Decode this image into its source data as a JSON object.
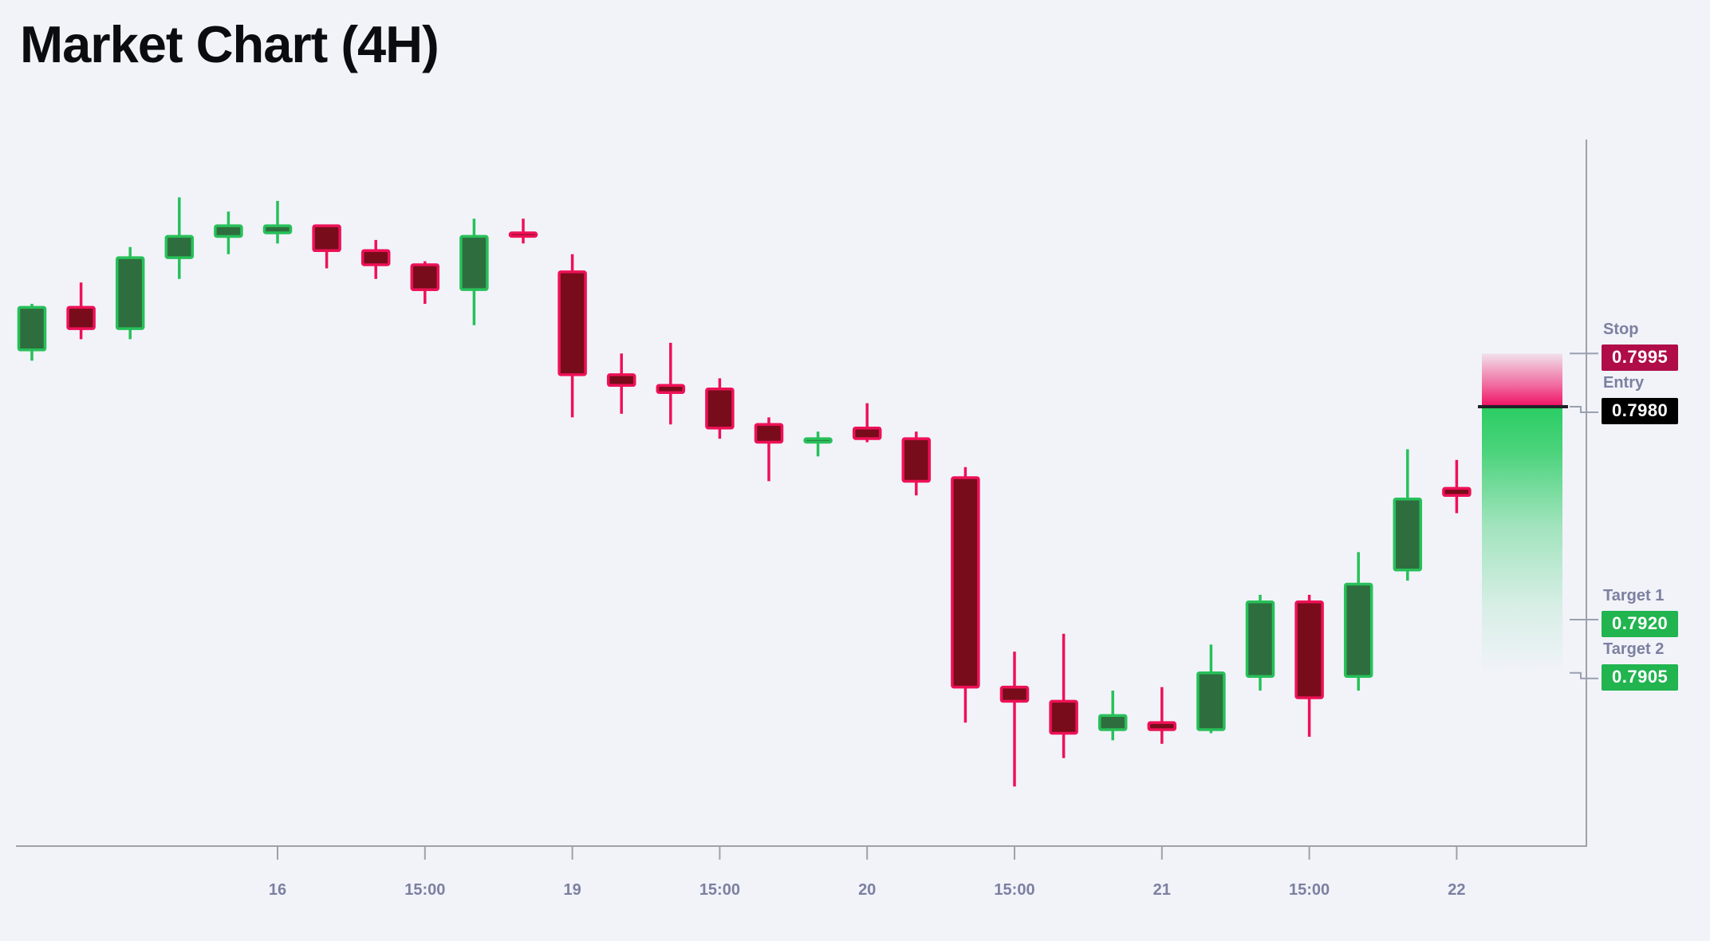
{
  "title": "Market Chart (4H)",
  "chart_data": {
    "type": "candlestick",
    "title": "Market Chart (4H)",
    "timeframe": "4H",
    "x_ticks": [
      {
        "candle_index": 5,
        "label": "16"
      },
      {
        "candle_index": 8,
        "label": "15:00"
      },
      {
        "candle_index": 11,
        "label": "19"
      },
      {
        "candle_index": 14,
        "label": "15:00"
      },
      {
        "candle_index": 17,
        "label": "20"
      },
      {
        "candle_index": 20,
        "label": "15:00"
      },
      {
        "candle_index": 23,
        "label": "21"
      },
      {
        "candle_index": 26,
        "label": "15:00"
      },
      {
        "candle_index": 29,
        "label": "22"
      }
    ],
    "ohlc_order": [
      "open",
      "high",
      "low",
      "close"
    ],
    "candles": [
      [
        0.7996,
        0.8009,
        0.7993,
        0.8008
      ],
      [
        0.8008,
        0.8015,
        0.7999,
        0.8002
      ],
      [
        0.8002,
        0.8025,
        0.7999,
        0.8022
      ],
      [
        0.8022,
        0.8039,
        0.8016,
        0.8028
      ],
      [
        0.8028,
        0.8035,
        0.8023,
        0.8031
      ],
      [
        0.8029,
        0.8038,
        0.8026,
        0.8031
      ],
      [
        0.8031,
        0.8031,
        0.8019,
        0.8024
      ],
      [
        0.8024,
        0.8027,
        0.8016,
        0.802
      ],
      [
        0.802,
        0.8021,
        0.8009,
        0.8013
      ],
      [
        0.8013,
        0.8033,
        0.8003,
        0.8028
      ],
      [
        0.8029,
        0.8033,
        0.8026,
        0.8028
      ],
      [
        0.8018,
        0.8023,
        0.7977,
        0.7989
      ],
      [
        0.7989,
        0.7995,
        0.7978,
        0.7986
      ],
      [
        0.7986,
        0.7998,
        0.7975,
        0.7984
      ],
      [
        0.7985,
        0.7988,
        0.7971,
        0.7974
      ],
      [
        0.7975,
        0.7977,
        0.7959,
        0.797
      ],
      [
        0.797,
        0.7973,
        0.7966,
        0.7971
      ],
      [
        0.7974,
        0.7981,
        0.797,
        0.7971
      ],
      [
        0.7971,
        0.7973,
        0.7955,
        0.7959
      ],
      [
        0.796,
        0.7963,
        0.7891,
        0.7901
      ],
      [
        0.7901,
        0.7911,
        0.7873,
        0.7897
      ],
      [
        0.7897,
        0.7916,
        0.7881,
        0.7888
      ],
      [
        0.7889,
        0.79,
        0.7886,
        0.7893
      ],
      [
        0.7891,
        0.7901,
        0.7885,
        0.7889
      ],
      [
        0.7889,
        0.7913,
        0.7888,
        0.7905
      ],
      [
        0.7904,
        0.7927,
        0.79,
        0.7925
      ],
      [
        0.7925,
        0.7927,
        0.7887,
        0.7898
      ],
      [
        0.7904,
        0.7939,
        0.79,
        0.793
      ],
      [
        0.7934,
        0.7968,
        0.7931,
        0.7954
      ],
      [
        0.7957,
        0.7965,
        0.795,
        0.7955
      ]
    ],
    "levels": [
      {
        "id": "stop",
        "label": "Stop",
        "value": "0.7995",
        "price": 0.7995,
        "badge_color": "#b00d48",
        "tick_style": "plain"
      },
      {
        "id": "entry",
        "label": "Entry",
        "value": "0.7980",
        "price": 0.798,
        "badge_color": "#000000",
        "tick_style": "step"
      },
      {
        "id": "target1",
        "label": "Target 1",
        "value": "0.7920",
        "price": 0.792,
        "badge_color": "#21b44f",
        "tick_style": "plain"
      },
      {
        "id": "target2",
        "label": "Target 2",
        "value": "0.7905",
        "price": 0.7905,
        "badge_color": "#21b44f",
        "tick_style": "step"
      }
    ],
    "zones": {
      "risk": {
        "from": 0.7995,
        "to": 0.798
      },
      "reward": {
        "from": 0.798,
        "to": 0.7905
      }
    },
    "entry_line_price": 0.798,
    "colors": {
      "background": "#f1f3f9",
      "title": "#0b0c0f",
      "bull_body": "#2e6e3e",
      "bull_border": "#28c05a",
      "bear_body": "#780c1b",
      "bear_border": "#ee1157",
      "risk": "#f00f62",
      "reward": "#2bcd64",
      "entry_line": "#222228",
      "axis": "#a0a1a8",
      "tick_label": "#7c80a0",
      "level_label": "#7c80a0",
      "level_tick": "#9aa0b0"
    },
    "legend": "none",
    "grid": false
  }
}
